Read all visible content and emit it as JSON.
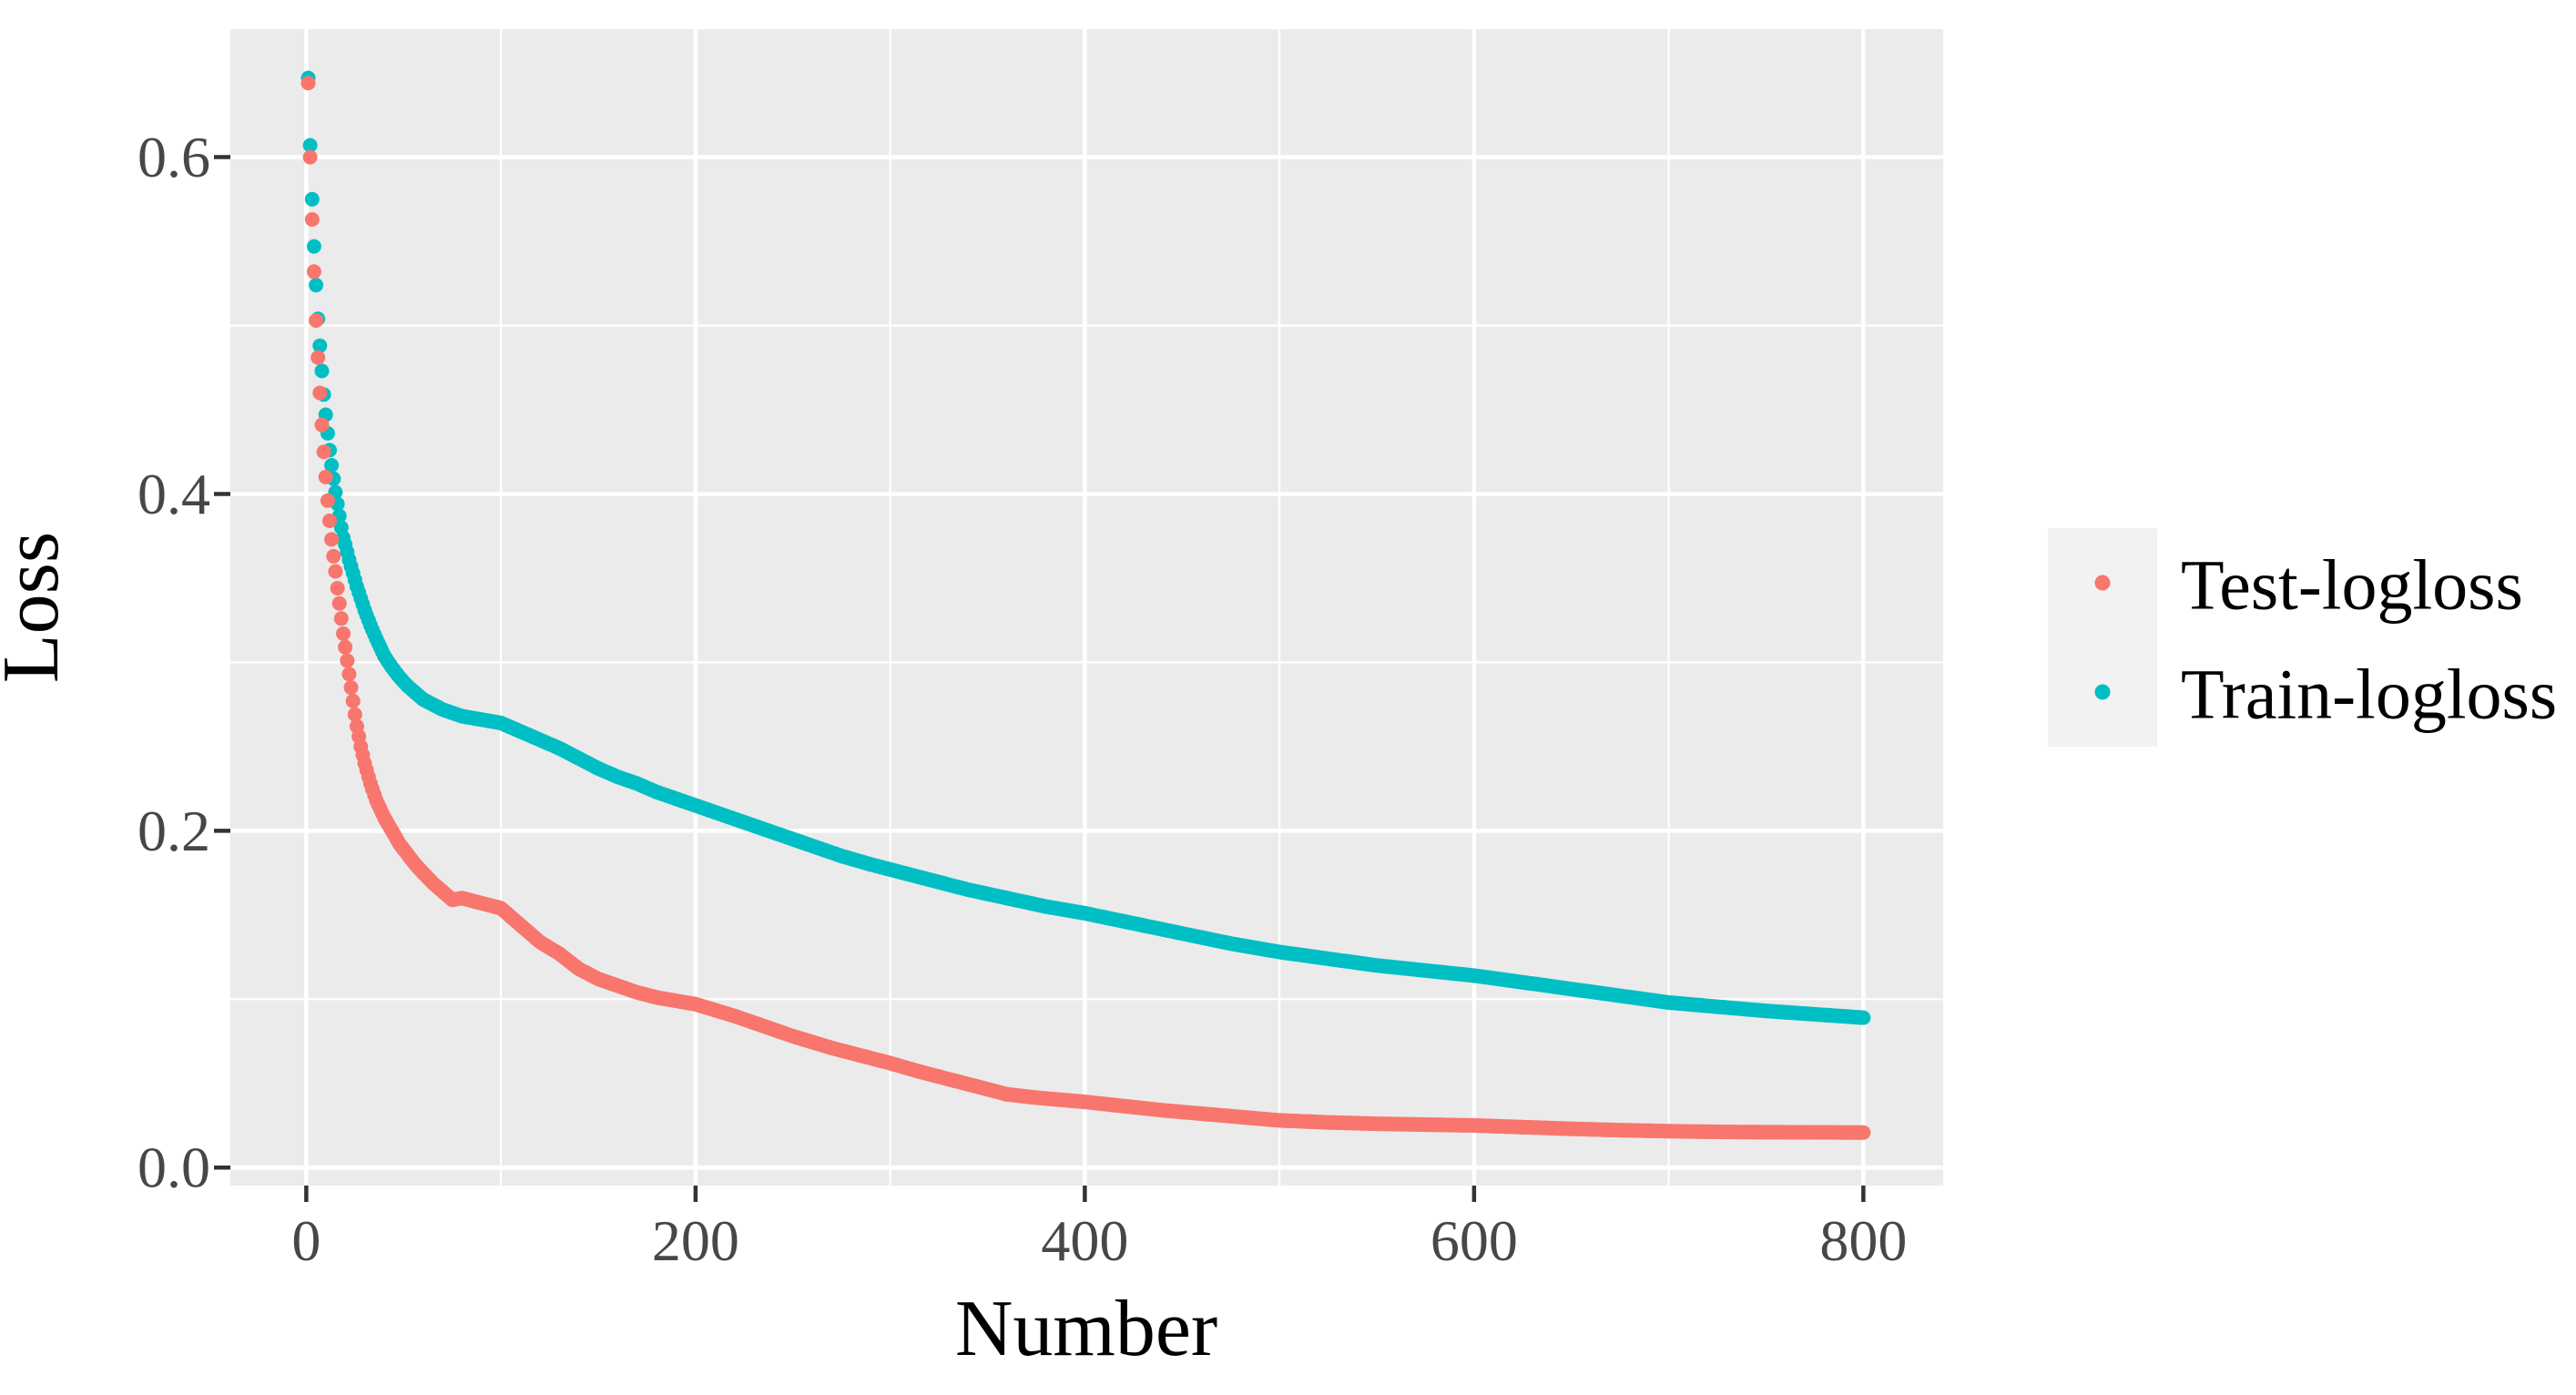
{
  "chart_data": {
    "type": "scatter",
    "title": "",
    "xlabel": "Number",
    "ylabel": "Loss",
    "xlim": [
      -39,
      841
    ],
    "ylim": [
      -0.0107,
      0.676
    ],
    "grid": "on",
    "legend_position": "right",
    "panel_bg": "#EBEBEB",
    "gridline_color": "#FFFFFF",
    "legend_key_bg": "#F2F2F2",
    "tick_color": "#333333",
    "x_ticks": {
      "values": [
        0,
        200,
        400,
        600,
        800
      ],
      "labels": [
        "0",
        "200",
        "400",
        "600",
        "800"
      ]
    },
    "y_ticks": {
      "values": [
        0.0,
        0.2,
        0.4,
        0.6
      ],
      "labels": [
        "0.0",
        "0.2",
        "0.4",
        "0.6"
      ]
    },
    "x_minor_ticks": [
      100,
      300,
      500,
      700
    ],
    "y_minor_ticks": [
      0.1,
      0.3,
      0.5
    ],
    "n_iterations": 800,
    "series": [
      {
        "name": "Train-logloss",
        "color": "#00BFC4",
        "points": [
          [
            1,
            0.647
          ],
          [
            2,
            0.607
          ],
          [
            3,
            0.575
          ],
          [
            4,
            0.547
          ],
          [
            5,
            0.524
          ],
          [
            6,
            0.504
          ],
          [
            7,
            0.488
          ],
          [
            8,
            0.473
          ],
          [
            9,
            0.459
          ],
          [
            10,
            0.447
          ],
          [
            11,
            0.436
          ],
          [
            12,
            0.426
          ],
          [
            13,
            0.417
          ],
          [
            14,
            0.409
          ],
          [
            15,
            0.401
          ],
          [
            16,
            0.394
          ],
          [
            17,
            0.387
          ],
          [
            18,
            0.38
          ],
          [
            19,
            0.374
          ],
          [
            20,
            0.37
          ],
          [
            22,
            0.361
          ],
          [
            24,
            0.353
          ],
          [
            26,
            0.345
          ],
          [
            28,
            0.338
          ],
          [
            30,
            0.331
          ],
          [
            33,
            0.322
          ],
          [
            36,
            0.314
          ],
          [
            40,
            0.304
          ],
          [
            44,
            0.297
          ],
          [
            48,
            0.291
          ],
          [
            52,
            0.286
          ],
          [
            56,
            0.282
          ],
          [
            60,
            0.278
          ],
          [
            70,
            0.272
          ],
          [
            80,
            0.268
          ],
          [
            90,
            0.266
          ],
          [
            100,
            0.264
          ],
          [
            110,
            0.259
          ],
          [
            120,
            0.254
          ],
          [
            130,
            0.249
          ],
          [
            140,
            0.243
          ],
          [
            150,
            0.237
          ],
          [
            160,
            0.232
          ],
          [
            170,
            0.228
          ],
          [
            180,
            0.223
          ],
          [
            190,
            0.219
          ],
          [
            200,
            0.215
          ],
          [
            215,
            0.209
          ],
          [
            230,
            0.203
          ],
          [
            245,
            0.197
          ],
          [
            260,
            0.191
          ],
          [
            275,
            0.185
          ],
          [
            290,
            0.18
          ],
          [
            300,
            0.177
          ],
          [
            320,
            0.171
          ],
          [
            340,
            0.165
          ],
          [
            360,
            0.16
          ],
          [
            380,
            0.155
          ],
          [
            400,
            0.151
          ],
          [
            425,
            0.145
          ],
          [
            450,
            0.139
          ],
          [
            475,
            0.133
          ],
          [
            500,
            0.128
          ],
          [
            525,
            0.124
          ],
          [
            550,
            0.12
          ],
          [
            575,
            0.117
          ],
          [
            600,
            0.114
          ],
          [
            625,
            0.11
          ],
          [
            650,
            0.106
          ],
          [
            675,
            0.102
          ],
          [
            700,
            0.098
          ],
          [
            725,
            0.0955
          ],
          [
            750,
            0.093
          ],
          [
            775,
            0.091
          ],
          [
            800,
            0.089
          ]
        ]
      },
      {
        "name": "Test-logloss",
        "color": "#F8766D",
        "points": [
          [
            1,
            0.644
          ],
          [
            2,
            0.6
          ],
          [
            3,
            0.563
          ],
          [
            4,
            0.532
          ],
          [
            5,
            0.503
          ],
          [
            6,
            0.481
          ],
          [
            7,
            0.46
          ],
          [
            8,
            0.441
          ],
          [
            9,
            0.425
          ],
          [
            10,
            0.41
          ],
          [
            11,
            0.396
          ],
          [
            12,
            0.384
          ],
          [
            13,
            0.373
          ],
          [
            14,
            0.363
          ],
          [
            15,
            0.354
          ],
          [
            16,
            0.344
          ],
          [
            17,
            0.335
          ],
          [
            18,
            0.326
          ],
          [
            19,
            0.317
          ],
          [
            20,
            0.309
          ],
          [
            21,
            0.301
          ],
          [
            22,
            0.293
          ],
          [
            23,
            0.285
          ],
          [
            24,
            0.277
          ],
          [
            25,
            0.269
          ],
          [
            26,
            0.262
          ],
          [
            28,
            0.25
          ],
          [
            30,
            0.24
          ],
          [
            33,
            0.228
          ],
          [
            36,
            0.218
          ],
          [
            40,
            0.208
          ],
          [
            44,
            0.2
          ],
          [
            48,
            0.192
          ],
          [
            52,
            0.186
          ],
          [
            56,
            0.18
          ],
          [
            60,
            0.175
          ],
          [
            65,
            0.169
          ],
          [
            70,
            0.164
          ],
          [
            75,
            0.159
          ],
          [
            80,
            0.16
          ],
          [
            90,
            0.157
          ],
          [
            100,
            0.154
          ],
          [
            110,
            0.144
          ],
          [
            120,
            0.134
          ],
          [
            130,
            0.127
          ],
          [
            140,
            0.118
          ],
          [
            150,
            0.112
          ],
          [
            160,
            0.108
          ],
          [
            170,
            0.104
          ],
          [
            180,
            0.101
          ],
          [
            190,
            0.099
          ],
          [
            200,
            0.097
          ],
          [
            210,
            0.0935
          ],
          [
            220,
            0.09
          ],
          [
            230,
            0.086
          ],
          [
            240,
            0.082
          ],
          [
            250,
            0.078
          ],
          [
            260,
            0.0745
          ],
          [
            270,
            0.071
          ],
          [
            280,
            0.068
          ],
          [
            290,
            0.065
          ],
          [
            300,
            0.062
          ],
          [
            315,
            0.057
          ],
          [
            330,
            0.0525
          ],
          [
            345,
            0.048
          ],
          [
            360,
            0.0435
          ],
          [
            375,
            0.0415
          ],
          [
            400,
            0.039
          ],
          [
            420,
            0.0365
          ],
          [
            440,
            0.034
          ],
          [
            460,
            0.032
          ],
          [
            480,
            0.03
          ],
          [
            500,
            0.028
          ],
          [
            525,
            0.0268
          ],
          [
            550,
            0.026
          ],
          [
            575,
            0.0255
          ],
          [
            600,
            0.025
          ],
          [
            625,
            0.024
          ],
          [
            650,
            0.023
          ],
          [
            675,
            0.0222
          ],
          [
            700,
            0.0216
          ],
          [
            725,
            0.0212
          ],
          [
            750,
            0.021
          ],
          [
            775,
            0.0209
          ],
          [
            800,
            0.0208
          ]
        ]
      }
    ],
    "legend": {
      "entries": [
        {
          "label": "Test-logloss",
          "color": "#F8766D"
        },
        {
          "label": "Train-logloss",
          "color": "#00BFC4"
        }
      ]
    }
  }
}
